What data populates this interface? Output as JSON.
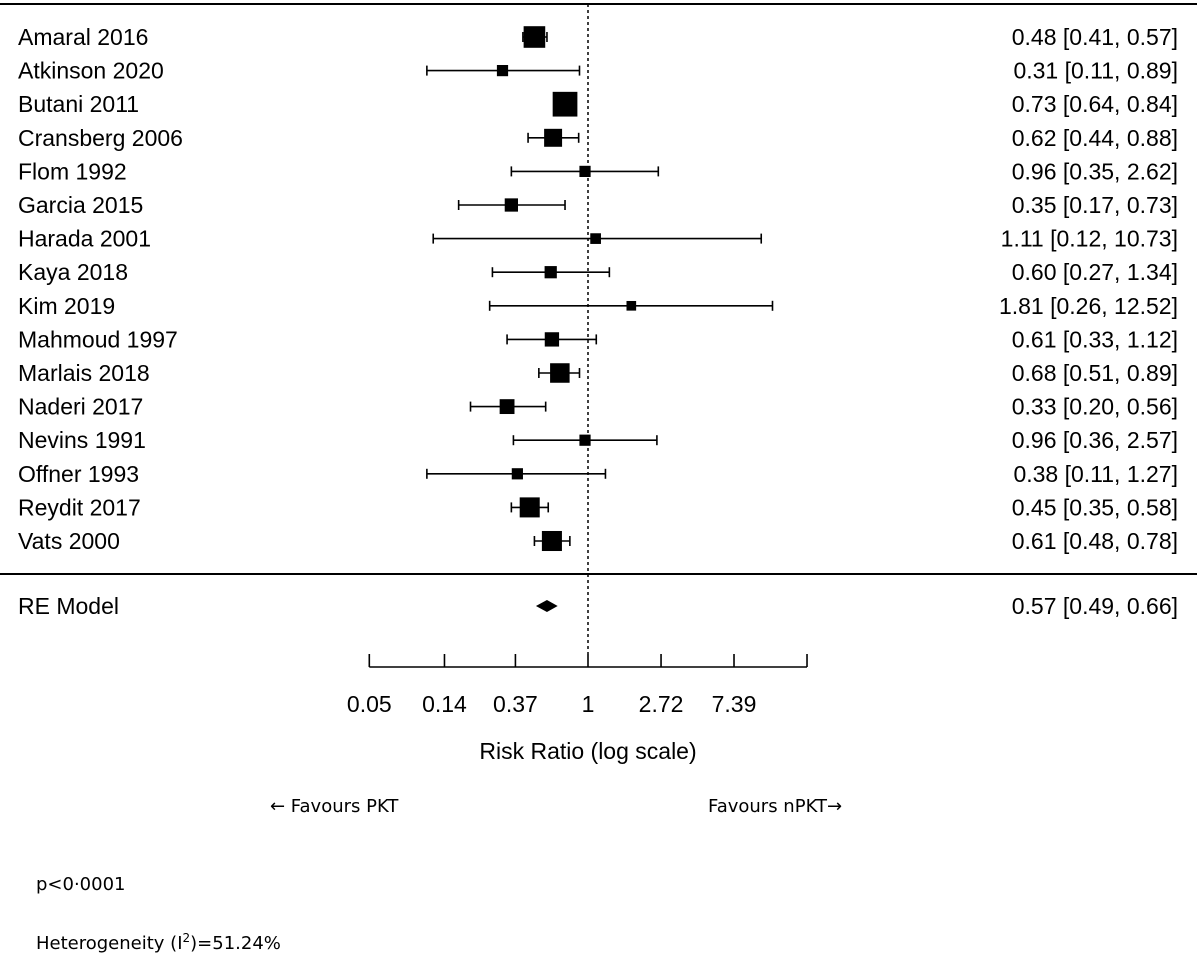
{
  "chart_data": {
    "type": "forest",
    "xlabel": "Risk Ratio (log scale)",
    "log_scale": true,
    "xlim": [
      0.05,
      20.09
    ],
    "ticks": [
      0.05,
      0.14,
      0.37,
      1,
      2.72,
      7.39,
      20.09
    ],
    "tick_labels": [
      "0.05",
      "0.14",
      "0.37",
      "1",
      "2.72",
      "7.39",
      ""
    ],
    "reference_line": 1,
    "studies": [
      {
        "label": "Amaral 2016",
        "rr": 0.48,
        "lower": 0.41,
        "upper": 0.57,
        "text": "0.48 [0.41,  0.57]",
        "weight": 3
      },
      {
        "label": "Atkinson 2020",
        "rr": 0.31,
        "lower": 0.11,
        "upper": 0.89,
        "text": "0.31 [0.11,  0.89]",
        "weight": 1
      },
      {
        "label": "Butani  2011",
        "rr": 0.73,
        "lower": 0.64,
        "upper": 0.84,
        "text": "0.73 [0.64,  0.84]",
        "weight": 3.6
      },
      {
        "label": "Cransberg  2006",
        "rr": 0.62,
        "lower": 0.44,
        "upper": 0.88,
        "text": "0.62 [0.44,  0.88]",
        "weight": 2.3
      },
      {
        "label": "Flom 1992",
        "rr": 0.96,
        "lower": 0.35,
        "upper": 2.62,
        "text": "0.96 [0.35,  2.62]",
        "weight": 1
      },
      {
        "label": "Garcia 2015",
        "rr": 0.35,
        "lower": 0.17,
        "upper": 0.73,
        "text": "0.35 [0.17,  0.73]",
        "weight": 1.4
      },
      {
        "label": "Harada 2001",
        "rr": 1.11,
        "lower": 0.12,
        "upper": 10.73,
        "text": "1.11 [0.12, 10.73]",
        "weight": 0.9
      },
      {
        "label": "Kaya 2018",
        "rr": 0.6,
        "lower": 0.27,
        "upper": 1.34,
        "text": "0.60 [0.27,  1.34]",
        "weight": 1.2
      },
      {
        "label": "Kim 2019",
        "rr": 1.81,
        "lower": 0.26,
        "upper": 12.52,
        "text": "1.81 [0.26, 12.52]",
        "weight": 0.7
      },
      {
        "label": "Mahmoud 1997",
        "rr": 0.61,
        "lower": 0.33,
        "upper": 1.12,
        "text": "0.61 [0.33,  1.12]",
        "weight": 1.6
      },
      {
        "label": "Marlais 2018",
        "rr": 0.68,
        "lower": 0.51,
        "upper": 0.89,
        "text": "0.68 [0.51,  0.89]",
        "weight": 2.6
      },
      {
        "label": "Naderi 2017",
        "rr": 0.33,
        "lower": 0.2,
        "upper": 0.56,
        "text": "0.33 [0.20,  0.56]",
        "weight": 1.7
      },
      {
        "label": "Nevins 1991",
        "rr": 0.96,
        "lower": 0.36,
        "upper": 2.57,
        "text": "0.96 [0.36,  2.57]",
        "weight": 1
      },
      {
        "label": "Offner 1993",
        "rr": 0.38,
        "lower": 0.11,
        "upper": 1.27,
        "text": "0.38 [0.11,  1.27]",
        "weight": 1
      },
      {
        "label": "Reydit 2017",
        "rr": 0.45,
        "lower": 0.35,
        "upper": 0.58,
        "text": "0.45 [0.35,  0.58]",
        "weight": 2.7
      },
      {
        "label": "Vats 2000",
        "rr": 0.61,
        "lower": 0.48,
        "upper": 0.78,
        "text": "0.61 [0.48,  0.78]",
        "weight": 2.7
      }
    ],
    "summary": {
      "label": "RE Model",
      "rr": 0.57,
      "lower": 0.49,
      "upper": 0.66,
      "text": "0.57 [0.49,  0.66]"
    },
    "annotations": {
      "favours_left": "← Favours PKT",
      "favours_right": "Favours nPKT→"
    }
  },
  "footer": {
    "p_value": "p<0·0001",
    "heterogeneity_prefix": "Heterogeneity (I",
    "heterogeneity_sup": "2",
    "heterogeneity_suffix": ")=51.24%"
  }
}
